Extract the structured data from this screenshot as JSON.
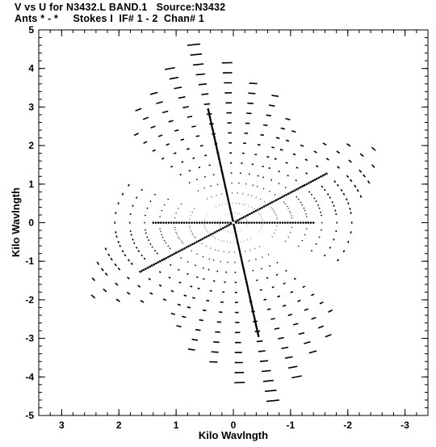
{
  "header": {
    "line1": "V vs U for N3432.L BAND.1   Source:N3432",
    "line2": "Ants * - *     Stokes I  IF# 1 - 2  Chan# 1"
  },
  "chart_data": {
    "type": "scatter",
    "title": "V vs U for N3432.L BAND.1   Source:N3432",
    "subtitle": "Ants * - *     Stokes I  IF# 1 - 2  Chan# 1",
    "xlabel": "Kilo Wavlngth",
    "ylabel": "Kilo Wavlngth",
    "xlim": [
      3.4,
      -3.4
    ],
    "ylim": [
      -5,
      5
    ],
    "x_ticks": [
      3,
      2,
      1,
      0,
      -1,
      -2,
      -3
    ],
    "x_tick_labels": [
      "3",
      "2",
      "1",
      "0",
      "-1",
      "-2",
      "-3"
    ],
    "y_ticks": [
      5,
      4,
      3,
      2,
      1,
      0,
      -1,
      -2,
      -3,
      -4,
      -5
    ],
    "y_tick_labels": [
      "5",
      "4",
      "3",
      "2",
      "1",
      "0",
      "-1",
      "-2",
      "-3",
      "-4",
      "-5"
    ],
    "grid": false,
    "color": "#000000",
    "uv_pattern": {
      "shape": "six-armed star",
      "arm_angles_deg": [
        0,
        81.5,
        142,
        180,
        261.5,
        322
      ],
      "arm_radii_kilo_wavelength": [
        2.3,
        4.8,
        3.3,
        2.3,
        4.8,
        3.3
      ],
      "radial_sample_spacing": 0.26,
      "track_extent_deg": 8
    }
  }
}
